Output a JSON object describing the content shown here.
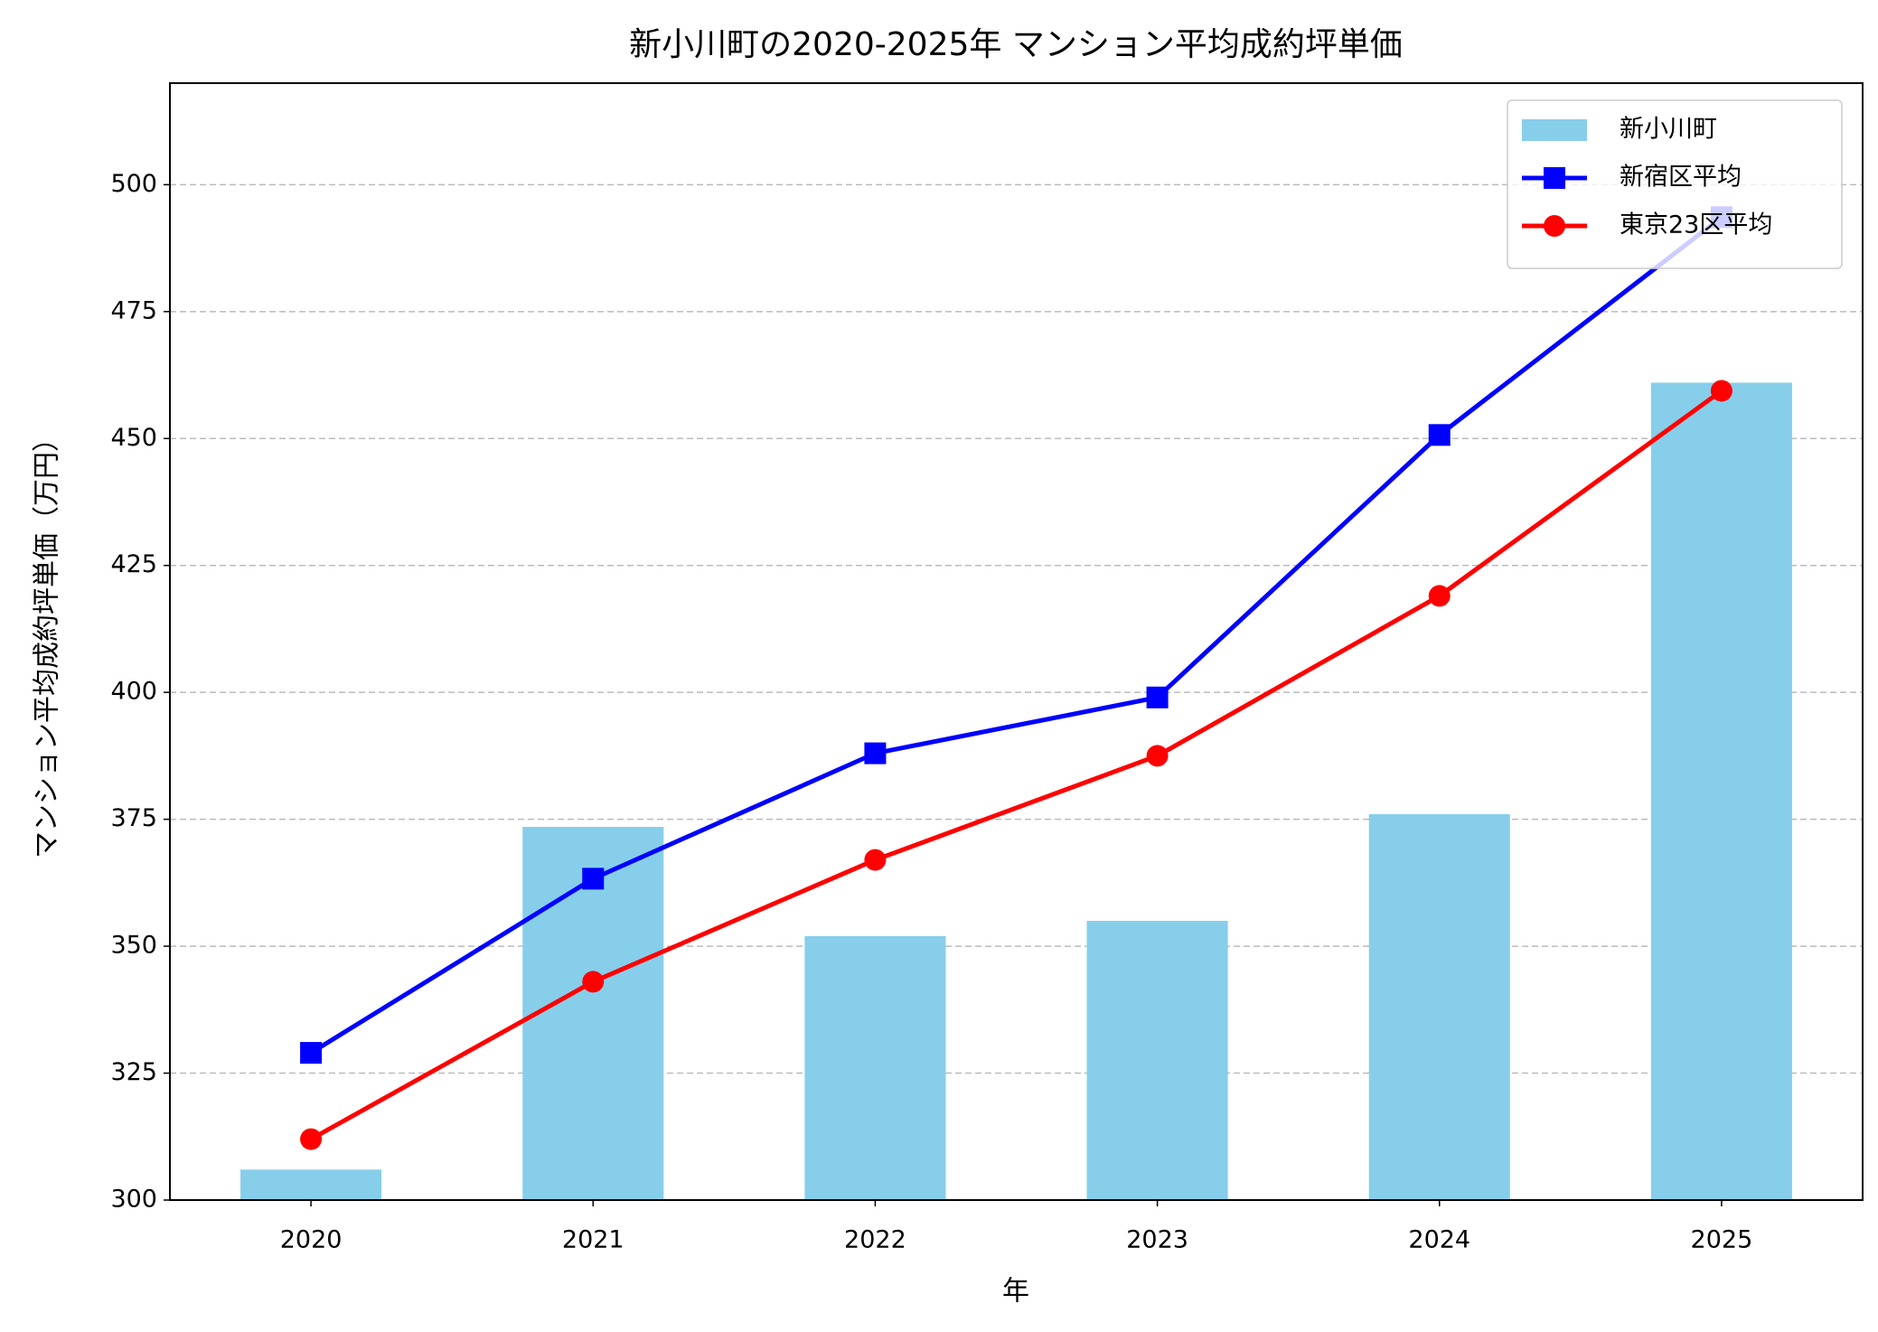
{
  "chart_data": {
    "type": "bar",
    "title": "新小川町の2020-2025年 マンション平均成約坪単価",
    "x_label": "年",
    "y_label": "マンション平均成約坪単価（万円）",
    "categories": [
      "2020",
      "2021",
      "2022",
      "2023",
      "2024",
      "2025"
    ],
    "series": [
      {
        "name": "新小川町",
        "type": "bar",
        "color": "#87ceeb",
        "values": [
          306,
          373.5,
          352,
          355,
          376,
          461
        ]
      },
      {
        "name": "新宿区平均",
        "type": "line",
        "marker": "square",
        "color": "#0000ff",
        "values": [
          329,
          363.3,
          388,
          399,
          450.7,
          493.6
        ]
      },
      {
        "name": "東京23区平均",
        "type": "line",
        "marker": "circle",
        "color": "#ff0000",
        "values": [
          312,
          343,
          367,
          387.5,
          419,
          459.4
        ]
      }
    ],
    "ylim": [
      300,
      520
    ],
    "yticks": [
      300,
      325,
      350,
      375,
      400,
      425,
      450,
      475,
      500
    ],
    "grid": true,
    "legend": "upper right"
  }
}
